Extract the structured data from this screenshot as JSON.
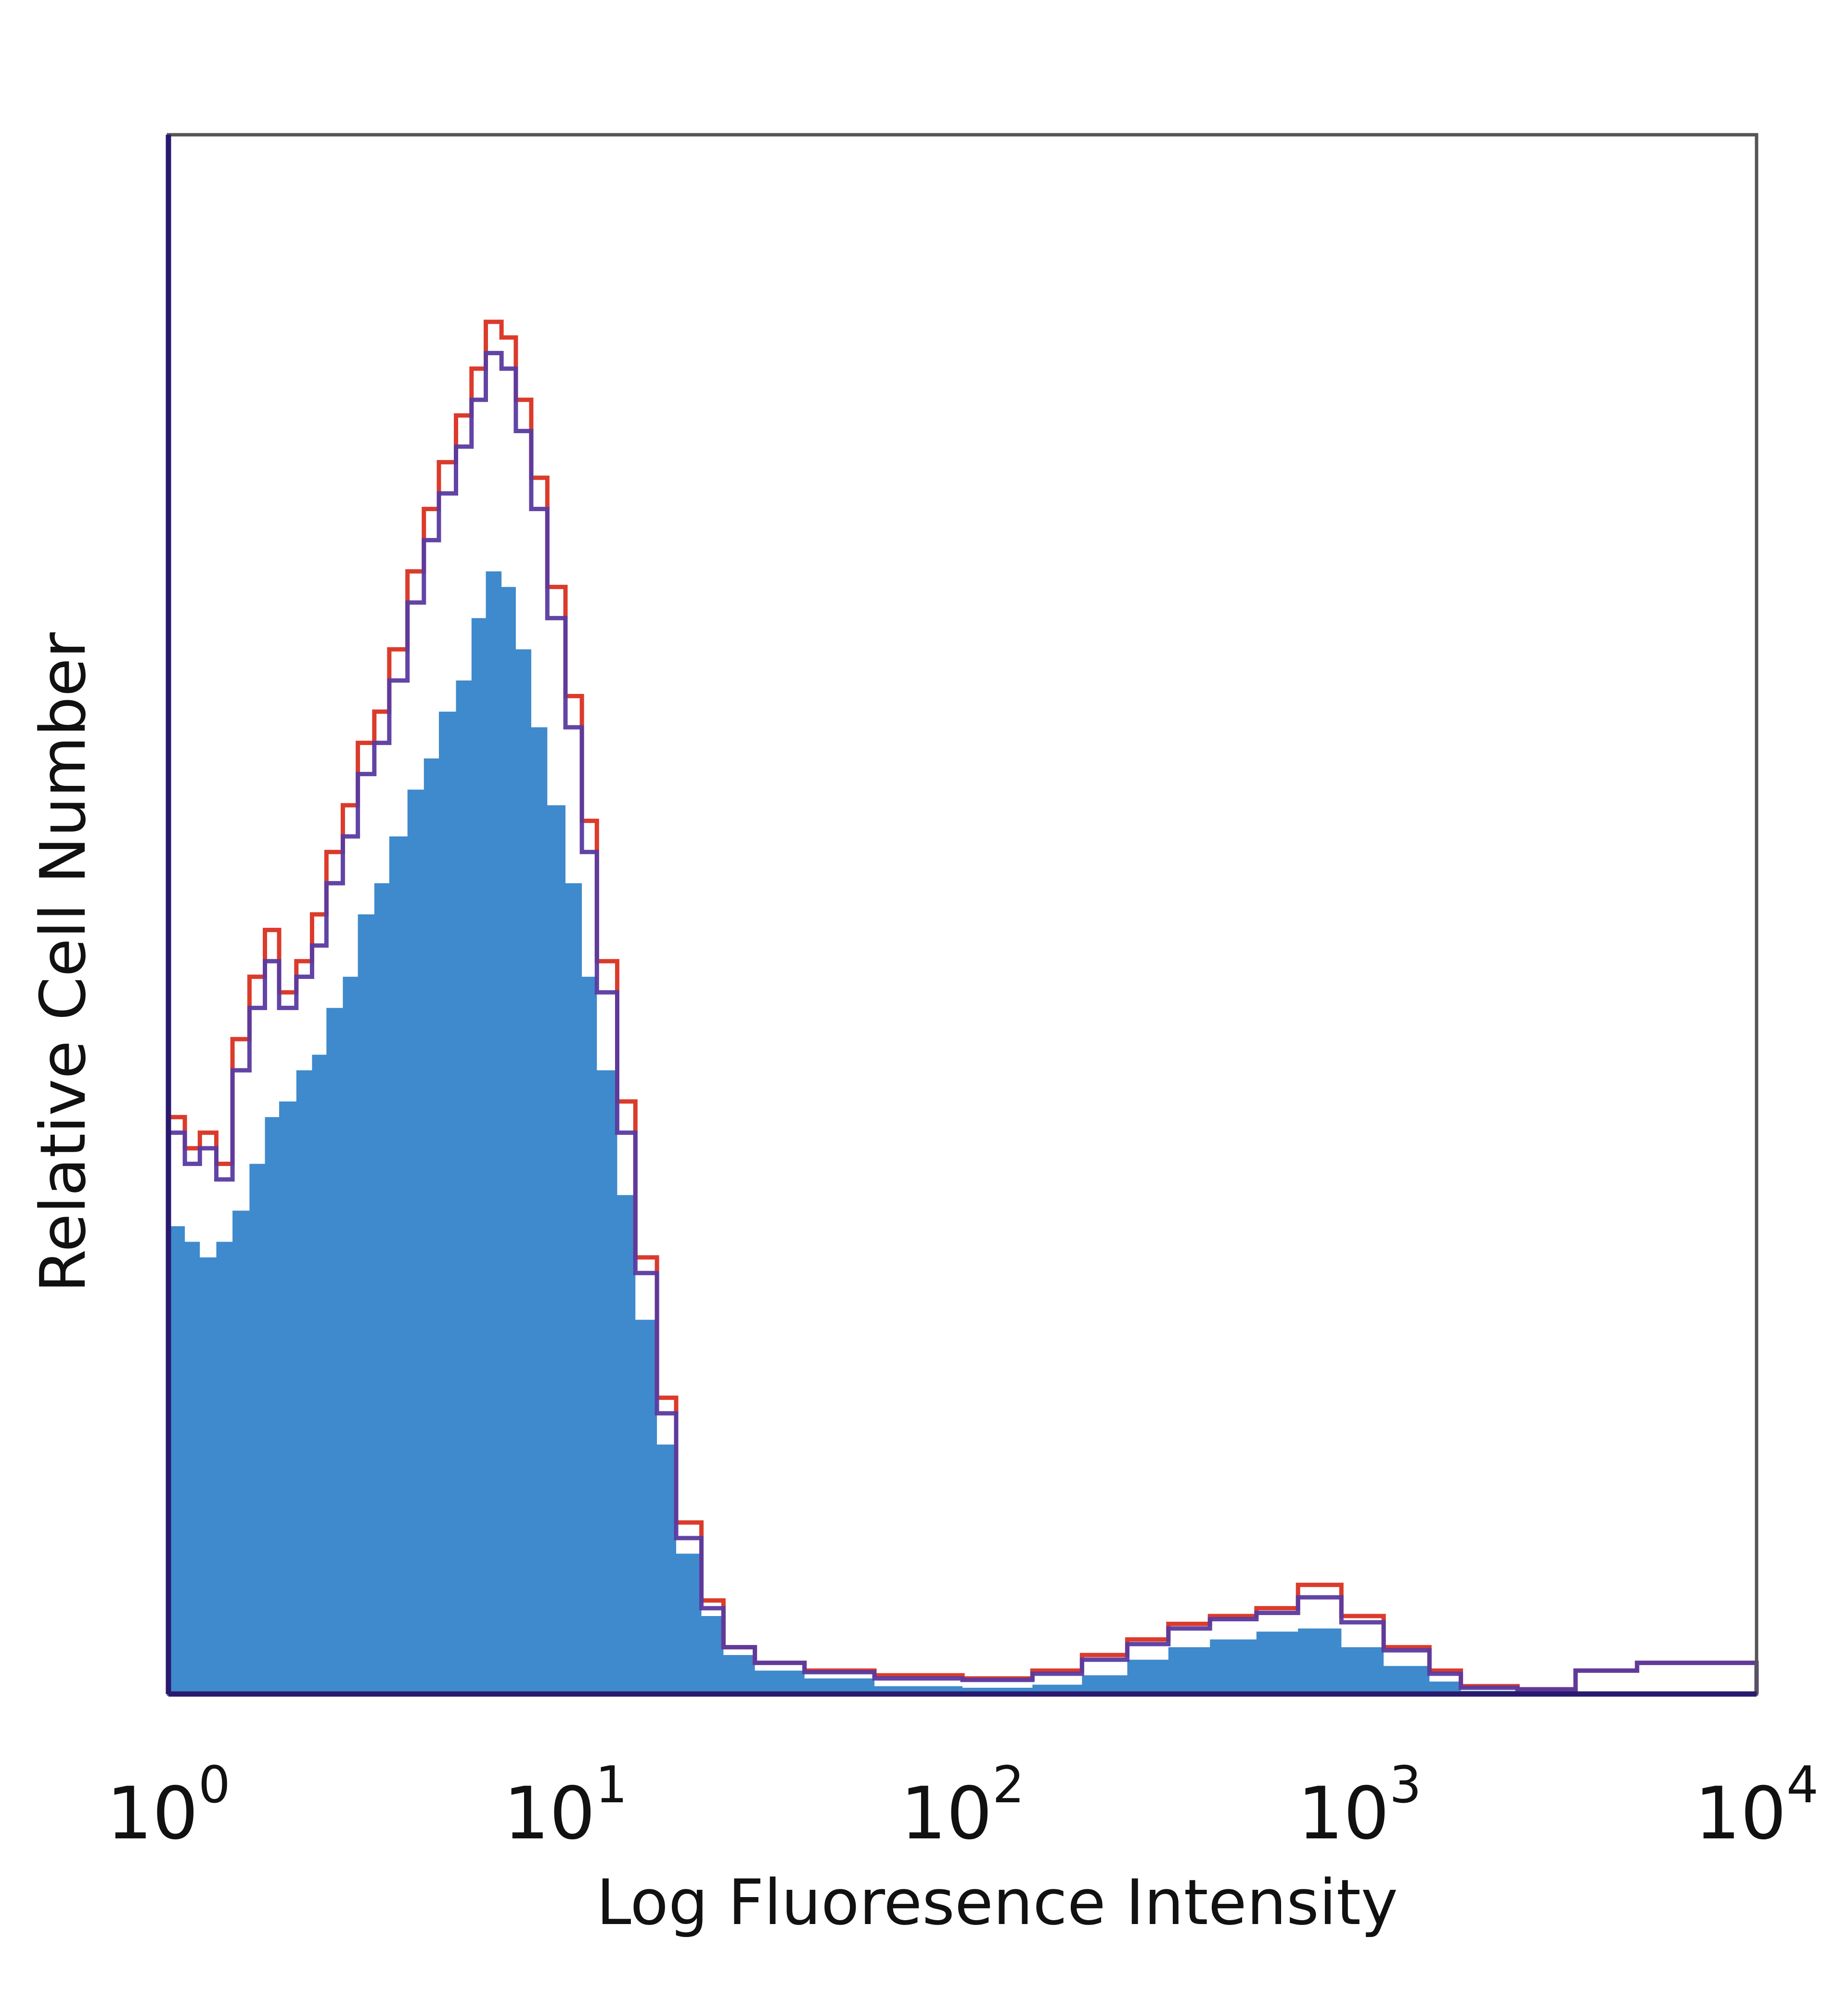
{
  "chart_data": {
    "type": "area",
    "title": "",
    "xlabel": "Log Fluoresence Intensity",
    "ylabel": "Relative Cell Number",
    "x_scale": "log10",
    "xlim": [
      1,
      10000
    ],
    "ylim": [
      0,
      100
    ],
    "grid": false,
    "legend": "none",
    "x_ticks": [
      {
        "base": "10",
        "exp": "0",
        "value": 1
      },
      {
        "base": "10",
        "exp": "1",
        "value": 10
      },
      {
        "base": "10",
        "exp": "2",
        "value": 100
      },
      {
        "base": "10",
        "exp": "3",
        "value": 1000
      },
      {
        "base": "10",
        "exp": "4",
        "value": 10000
      }
    ],
    "series": [
      {
        "role": "filled-histogram",
        "color": "#3e8acc",
        "x": [
          1.0,
          1.1,
          1.2,
          1.32,
          1.45,
          1.6,
          1.75,
          1.9,
          2.1,
          2.3,
          2.5,
          2.75,
          3.0,
          3.3,
          3.6,
          4.0,
          4.4,
          4.8,
          5.3,
          5.8,
          6.3,
          6.9,
          7.5,
          8.2,
          9.0,
          10.0,
          11.0,
          12.0,
          13.5,
          15.0,
          17.0,
          19.0,
          22.0,
          25.0,
          30.0,
          40.0,
          60.0,
          100.0,
          150.0,
          200.0,
          260.0,
          330.0,
          420.0,
          550.0,
          700.0,
          900.0,
          1150.0,
          1500.0,
          1800.0,
          2500.0,
          3500.0,
          5000.0,
          10000.0
        ],
        "values": [
          30,
          29,
          28,
          29,
          31,
          34,
          37,
          38,
          40,
          41,
          44,
          46,
          50,
          52,
          55,
          58,
          60,
          63,
          65,
          69,
          72,
          71,
          67,
          62,
          57,
          52,
          46,
          40,
          32,
          24,
          16,
          9,
          5,
          2.5,
          1.5,
          1.0,
          0.5,
          0.4,
          0.6,
          1.2,
          2.2,
          3.0,
          3.5,
          4.0,
          4.2,
          3.0,
          1.8,
          0.8,
          0.2,
          0.1,
          0,
          0,
          0
        ]
      },
      {
        "role": "outline",
        "color": "#d93020",
        "x": [
          1.0,
          1.1,
          1.2,
          1.32,
          1.45,
          1.6,
          1.75,
          1.9,
          2.1,
          2.3,
          2.5,
          2.75,
          3.0,
          3.3,
          3.6,
          4.0,
          4.4,
          4.8,
          5.3,
          5.8,
          6.3,
          6.9,
          7.5,
          8.2,
          9.0,
          10.0,
          11.0,
          12.0,
          13.5,
          15.0,
          17.0,
          19.0,
          22.0,
          25.0,
          30.0,
          40.0,
          60.0,
          100.0,
          150.0,
          200.0,
          260.0,
          330.0,
          420.0,
          550.0,
          700.0,
          900.0,
          1150.0,
          1500.0,
          1800.0,
          2500.0,
          3500.0,
          5000.0,
          10000.0
        ],
        "values": [
          37,
          35,
          36,
          34,
          42,
          46,
          49,
          45,
          47,
          50,
          54,
          57,
          61,
          63,
          67,
          72,
          76,
          79,
          82,
          85,
          88,
          87,
          83,
          78,
          71,
          64,
          56,
          47,
          38,
          28,
          19,
          11,
          6,
          3,
          2,
          1.5,
          1.2,
          1.0,
          1.5,
          2.5,
          3.5,
          4.5,
          5.0,
          5.5,
          7.0,
          5.0,
          3.0,
          1.5,
          0.5,
          0.3,
          1.5,
          2.0,
          0
        ]
      },
      {
        "role": "outline",
        "color": "#5a3aa0",
        "x": [
          1.0,
          1.1,
          1.2,
          1.32,
          1.45,
          1.6,
          1.75,
          1.9,
          2.1,
          2.3,
          2.5,
          2.75,
          3.0,
          3.3,
          3.6,
          4.0,
          4.4,
          4.8,
          5.3,
          5.8,
          6.3,
          6.9,
          7.5,
          8.2,
          9.0,
          10.0,
          11.0,
          12.0,
          13.5,
          15.0,
          17.0,
          19.0,
          22.0,
          25.0,
          30.0,
          40.0,
          60.0,
          100.0,
          150.0,
          200.0,
          260.0,
          330.0,
          420.0,
          550.0,
          700.0,
          900.0,
          1150.0,
          1500.0,
          1800.0,
          2500.0,
          3500.0,
          5000.0,
          10000.0
        ],
        "values": [
          36,
          34,
          35,
          33,
          40,
          44,
          47,
          44,
          46,
          48,
          52,
          55,
          59,
          61,
          65,
          70,
          74,
          77,
          80,
          83,
          86,
          85,
          81,
          76,
          69,
          62,
          54,
          45,
          36,
          27,
          18,
          10,
          5.5,
          3,
          2,
          1.4,
          1.0,
          0.9,
          1.3,
          2.2,
          3.2,
          4.2,
          4.8,
          5.2,
          6.2,
          4.6,
          2.8,
          1.3,
          0.4,
          0.3,
          1.5,
          2.0,
          0
        ]
      }
    ]
  }
}
